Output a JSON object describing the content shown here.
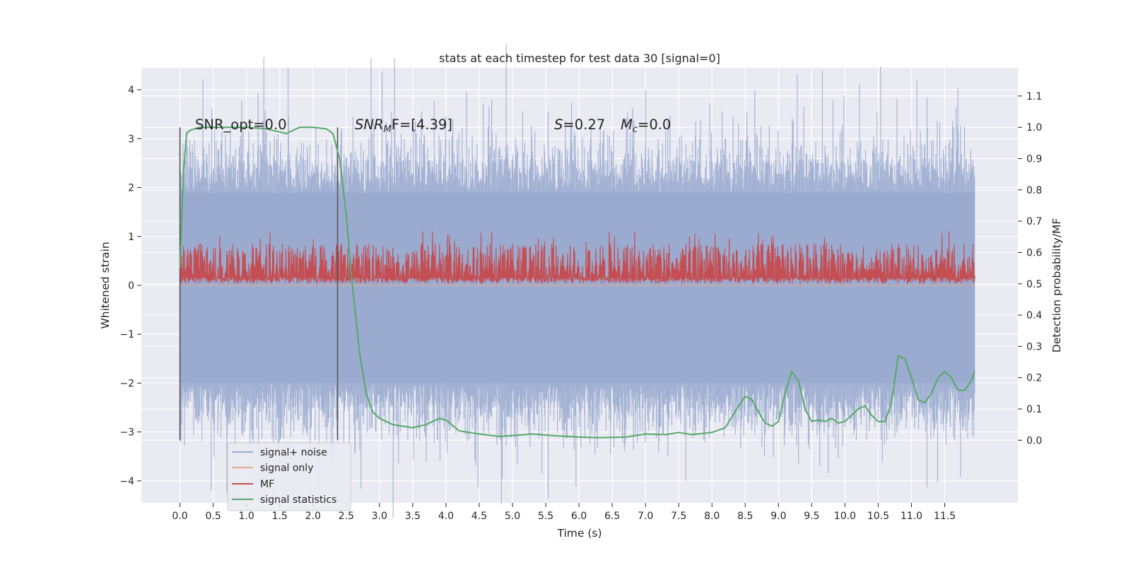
{
  "chart_data": {
    "type": "line",
    "title": "stats at each timestep for test data 30 [signal=0]",
    "xlabel": "Time (s)",
    "ylabel_left": "Whitened strain",
    "ylabel_right": "Detection probability/MF",
    "xlim": [
      -0.58,
      12.6
    ],
    "ylim_left": [
      -4.45,
      4.45
    ],
    "ylim_right": [
      -0.2,
      1.19
    ],
    "x_ticks": [
      "0.0",
      "0.5",
      "1.0",
      "1.5",
      "2.0",
      "2.5",
      "3.0",
      "3.5",
      "4.0",
      "4.5",
      "5.0",
      "5.5",
      "6.0",
      "6.5",
      "7.0",
      "7.5",
      "8.0",
      "8.5",
      "9.0",
      "9.5",
      "10.0",
      "10.5",
      "11.0",
      "11.5"
    ],
    "y_ticks_left": [
      "−4",
      "−3",
      "−2",
      "−1",
      "0",
      "1",
      "2",
      "3",
      "4"
    ],
    "y_ticks_right": [
      "0.0",
      "0.1",
      "0.2",
      "0.3",
      "0.4",
      "0.5",
      "0.6",
      "0.7",
      "0.8",
      "0.9",
      "1.0",
      "1.1"
    ],
    "grid": true,
    "legend_position": "lower-left",
    "annotations": {
      "snr_opt": "SNR_opt=0.0",
      "snr_mf_symbol": "SNR",
      "snr_mf_sub": "M",
      "snr_mf_rest": "F=[4.39]",
      "s_symbol": "S",
      "s_rest": "=0.27",
      "mc_symbol": "M",
      "mc_sub": "c",
      "mc_rest": "=0.0"
    },
    "vertical_markers": [
      0.0,
      2.37
    ],
    "series": [
      {
        "name": "signal+ noise",
        "axis": "left",
        "color": "#9aabcf",
        "description_range": [
          0.0,
          11.95
        ],
        "approx_band": [
          -2.0,
          1.9
        ]
      },
      {
        "name": "signal only",
        "axis": "left",
        "color": "#e8a98b",
        "values_const": 0.0
      },
      {
        "name": "MF",
        "axis": "right",
        "color": "#c44e52",
        "approx_band": [
          0.5,
          0.63
        ]
      },
      {
        "name": "signal statistics",
        "axis": "right",
        "color": "#55a868",
        "x": [
          0.0,
          0.05,
          0.1,
          0.15,
          0.3,
          0.6,
          1.0,
          1.3,
          1.5,
          1.6,
          1.7,
          1.8,
          2.0,
          2.2,
          2.3,
          2.4,
          2.5,
          2.6,
          2.7,
          2.8,
          2.9,
          3.0,
          3.2,
          3.5,
          3.7,
          3.9,
          4.0,
          4.2,
          4.5,
          4.8,
          5.0,
          5.3,
          5.6,
          6.0,
          6.3,
          6.7,
          7.0,
          7.3,
          7.5,
          7.7,
          8.0,
          8.2,
          8.4,
          8.5,
          8.6,
          8.7,
          8.8,
          8.9,
          9.0,
          9.1,
          9.2,
          9.3,
          9.4,
          9.5,
          9.6,
          9.7,
          9.8,
          9.9,
          10.0,
          10.1,
          10.2,
          10.3,
          10.4,
          10.5,
          10.6,
          10.7,
          10.8,
          10.9,
          11.0,
          11.1,
          11.2,
          11.3,
          11.4,
          11.5,
          11.6,
          11.7,
          11.8,
          11.9,
          11.95
        ],
        "y": [
          0.55,
          0.85,
          0.98,
          0.99,
          1.0,
          1.0,
          1.0,
          0.995,
          0.985,
          0.98,
          0.99,
          1.0,
          1.0,
          0.995,
          0.98,
          0.9,
          0.72,
          0.48,
          0.28,
          0.15,
          0.09,
          0.07,
          0.05,
          0.04,
          0.05,
          0.07,
          0.065,
          0.03,
          0.02,
          0.012,
          0.015,
          0.02,
          0.015,
          0.01,
          0.008,
          0.01,
          0.02,
          0.018,
          0.025,
          0.018,
          0.025,
          0.04,
          0.11,
          0.14,
          0.13,
          0.09,
          0.055,
          0.045,
          0.06,
          0.15,
          0.22,
          0.19,
          0.1,
          0.06,
          0.065,
          0.06,
          0.07,
          0.055,
          0.06,
          0.08,
          0.1,
          0.11,
          0.08,
          0.06,
          0.06,
          0.12,
          0.27,
          0.26,
          0.2,
          0.13,
          0.12,
          0.15,
          0.2,
          0.22,
          0.2,
          0.16,
          0.16,
          0.19,
          0.22
        ]
      }
    ]
  }
}
